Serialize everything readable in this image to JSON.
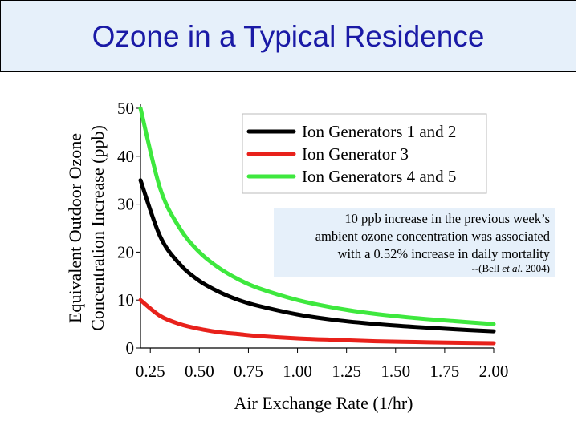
{
  "slide": {
    "title": "Ozone in a Typical Residence"
  },
  "annotation": {
    "lines": [
      "10 ppb increase in the previous week’s",
      "ambient ozone concentration was associated",
      "with a 0.52% increase in daily mortality"
    ],
    "citation_prefix": "--(Bell ",
    "citation_italic": "et al.",
    "citation_suffix": " 2004)"
  },
  "chart_data": {
    "type": "line",
    "xlabel": "Air Exchange Rate (1/hr)",
    "ylabel_lines": [
      "Equivalent Outdoor Ozone",
      "Concentration Increase (ppb)"
    ],
    "xlim": [
      0.2,
      2.0
    ],
    "ylim": [
      0,
      50
    ],
    "x_ticks": [
      "0.25",
      "0.50",
      "0.75",
      "1.00",
      "1.25",
      "1.50",
      "1.75",
      "2.00"
    ],
    "x_tick_values": [
      0.25,
      0.5,
      0.75,
      1.0,
      1.25,
      1.5,
      1.75,
      2.0
    ],
    "y_ticks": [
      "0",
      "10",
      "20",
      "30",
      "40",
      "50"
    ],
    "y_tick_values": [
      0,
      10,
      20,
      30,
      40,
      50
    ],
    "legend_position": "top-right",
    "x": [
      0.2,
      0.3,
      0.4,
      0.5,
      0.6,
      0.7,
      0.8,
      1.0,
      1.2,
      1.4,
      1.6,
      1.8,
      2.0
    ],
    "series": [
      {
        "name": "Ion Generators 1 and 2",
        "color": "#000000",
        "values": [
          35.0,
          23.3,
          17.5,
          14.0,
          11.7,
          10.0,
          8.8,
          7.0,
          5.8,
          5.0,
          4.4,
          3.9,
          3.5
        ]
      },
      {
        "name": "Ion Generator 3",
        "color": "#e8211b",
        "values": [
          10.0,
          6.7,
          5.0,
          4.0,
          3.3,
          2.9,
          2.5,
          2.0,
          1.7,
          1.4,
          1.25,
          1.1,
          1.0
        ]
      },
      {
        "name": "Ion Generators 4 and 5",
        "color": "#3ee83e",
        "values": [
          50.0,
          33.3,
          25.0,
          20.0,
          16.7,
          14.3,
          12.5,
          10.0,
          8.3,
          7.1,
          6.25,
          5.6,
          5.0
        ]
      }
    ]
  }
}
